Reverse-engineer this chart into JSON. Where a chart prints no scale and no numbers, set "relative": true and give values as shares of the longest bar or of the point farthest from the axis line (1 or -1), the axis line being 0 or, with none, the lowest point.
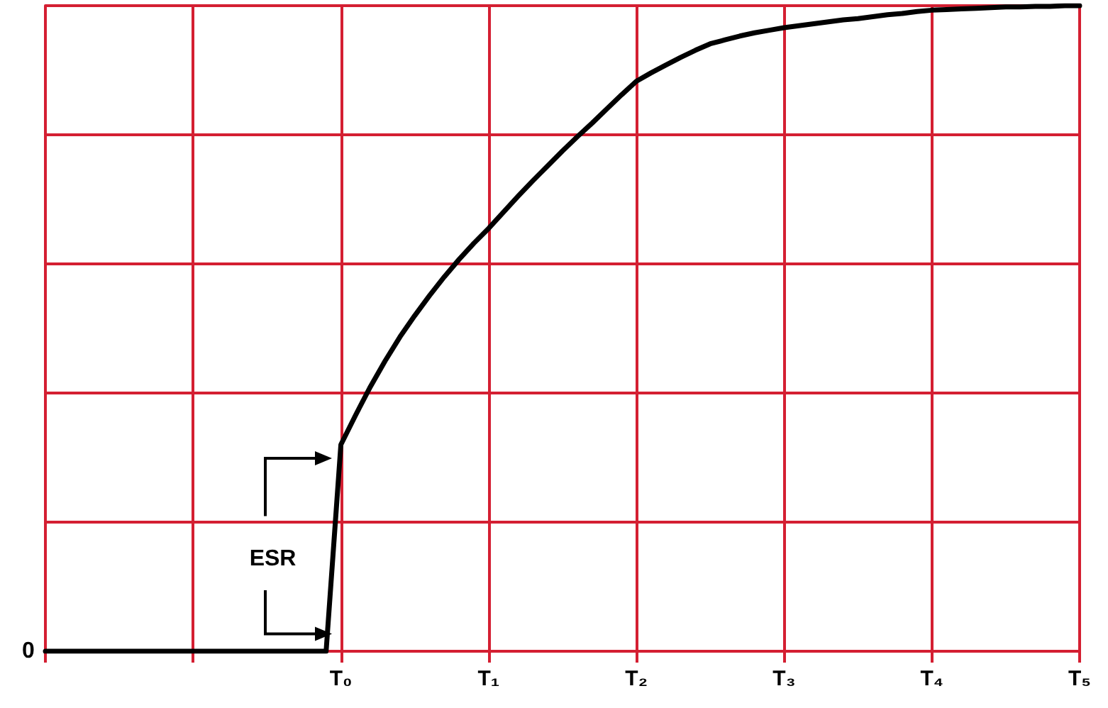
{
  "chart_data": {
    "type": "line",
    "relative": true,
    "categories": [
      null,
      null,
      null,
      null,
      null,
      null,
      null,
      null,
      null,
      null,
      null,
      null,
      null,
      null,
      null,
      null,
      null,
      null,
      null,
      null,
      "T₀",
      null,
      null,
      null,
      null,
      null,
      null,
      null,
      null,
      null,
      "T₁",
      null,
      null,
      null,
      null,
      null,
      null,
      null,
      null,
      null,
      "T₂",
      null,
      null,
      null,
      null,
      null,
      null,
      null,
      null,
      null,
      "T₃",
      null,
      null,
      null,
      null,
      null,
      null,
      null,
      null,
      null,
      "T₄",
      null,
      null,
      null,
      null,
      null,
      null,
      null,
      null,
      null,
      "T₅"
    ],
    "values": [
      0,
      0,
      0,
      0,
      0,
      0,
      0,
      0,
      0,
      0,
      0,
      0,
      0,
      0,
      0,
      0,
      0,
      0,
      0,
      0,
      0.32,
      0.366,
      0.41,
      0.45,
      0.487,
      0.52,
      0.551,
      0.58,
      0.607,
      0.632,
      0.655,
      0.68,
      0.705,
      0.729,
      0.752,
      0.775,
      0.797,
      0.818,
      0.84,
      0.862,
      0.883,
      0.896,
      0.908,
      0.92,
      0.931,
      0.941,
      0.947,
      0.953,
      0.958,
      0.962,
      0.966,
      0.969,
      0.972,
      0.975,
      0.978,
      0.98,
      0.983,
      0.986,
      0.988,
      0.991,
      0.993,
      0.994,
      0.995,
      0.996,
      0.997,
      0.998,
      0.998,
      0.999,
      0.999,
      1,
      1
    ],
    "color": "#000000",
    "grid": true,
    "marker": "none",
    "line_style": "solid",
    "annotations": [
      "0",
      "ESR"
    ]
  }
}
